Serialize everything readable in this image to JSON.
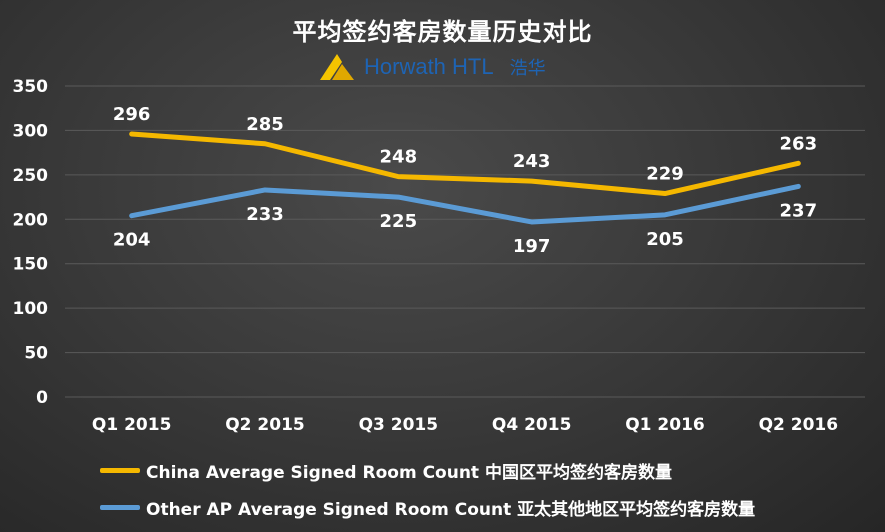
{
  "logo": {
    "text": "Horwath HTL",
    "text_cn": "浩华"
  },
  "chart_data": {
    "type": "line",
    "title": "平均签约客房数量历史对比",
    "categories": [
      "Q1 2015",
      "Q2 2015",
      "Q3 2015",
      "Q4 2015",
      "Q1 2016",
      "Q2 2016"
    ],
    "series": [
      {
        "name": "China Average Signed Room Count 中国区平均签约客房数量",
        "color": "#f5b800",
        "values": [
          296,
          285,
          248,
          243,
          229,
          263
        ],
        "label_position": "above"
      },
      {
        "name": "Other AP Average Signed Room Count 亚太其他地区平均签约客房数量",
        "color": "#5b9bd5",
        "values": [
          204,
          233,
          225,
          197,
          205,
          237
        ],
        "label_position": "below"
      }
    ],
    "ylim": [
      0,
      350
    ],
    "yticks": [
      "0",
      "50",
      "100",
      "150",
      "200",
      "250",
      "300",
      "350"
    ],
    "grid": true,
    "legend": "bottom"
  }
}
